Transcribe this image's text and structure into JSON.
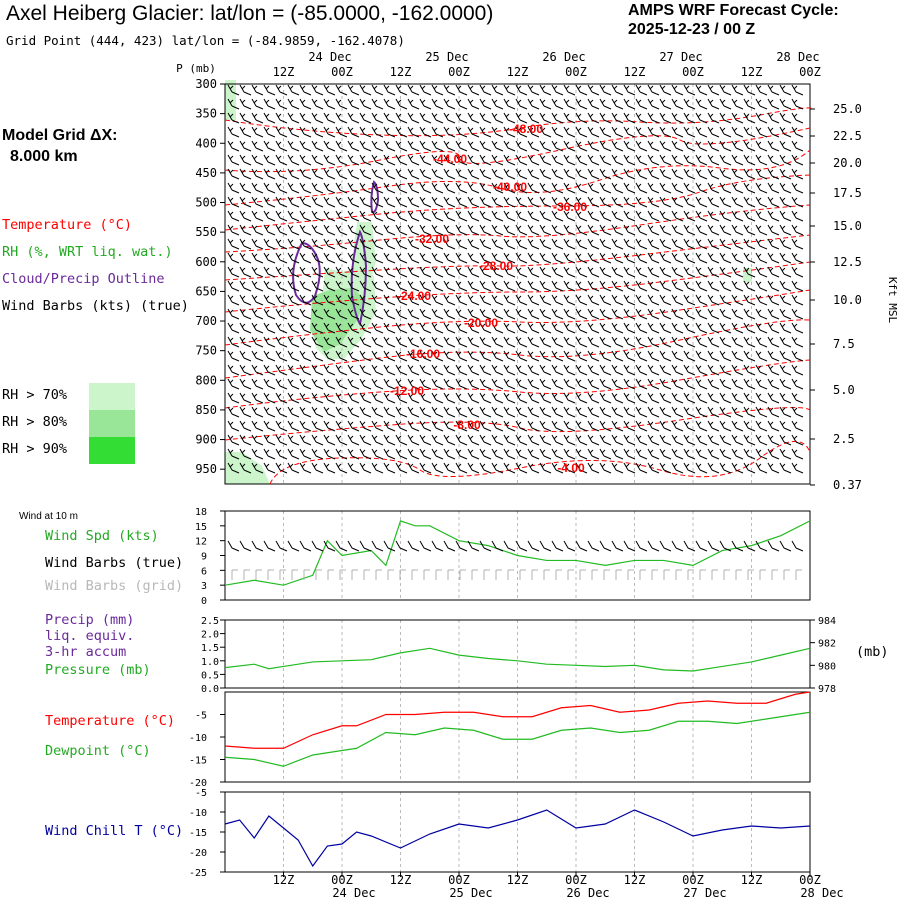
{
  "header": {
    "title": "Axel Heiberg Glacier:  lat/lon = (-85.0000, -162.0000)",
    "subtitle": "Grid Point (444, 423) lat/lon = (-84.9859, -162.4078)",
    "cycle_line1": "AMPS WRF Forecast Cycle:",
    "cycle_line2": "2025-12-23 / 00  Z",
    "grid_line1": "Model Grid ΔX:",
    "grid_line2": "8.000 km"
  },
  "time_axis": {
    "ticks": [
      "12Z",
      "00Z",
      "12Z",
      "00Z",
      "12Z",
      "00Z",
      "12Z",
      "00Z",
      "12Z",
      "00Z"
    ],
    "days": [
      "24 Dec",
      "25 Dec",
      "26 Dec",
      "27 Dec",
      "28 Dec"
    ]
  },
  "colors": {
    "temperature": "#ff0000",
    "rh": "#22bb22",
    "cloud": "#6a2a9a",
    "wind": "#000000",
    "grid_barb": "#b0b0b0",
    "wind_chill": "#0000a0",
    "rh70": "#ccf5cc",
    "rh80": "#99e699",
    "rh90": "#33dd33"
  },
  "legend_upper": {
    "temperature": "Temperature (°C)",
    "rh": "RH (%, WRT liq. wat.)",
    "cloud": "Cloud/Precip Outline",
    "wind": "Wind Barbs (kts) (true)",
    "rh70": "RH > 70%",
    "rh80": "RH > 80%",
    "rh90": "RH > 90%"
  },
  "legend_lower": {
    "wind10": "Wind at 10 m",
    "wspd": "Wind Spd (kts)",
    "wbarb_true": "Wind Barbs (true)",
    "wbarb_grid": "Wind Barbs (grid)",
    "precip1": "Precip (mm)",
    "precip2": "liq. equiv.",
    "precip3": "3-hr accum",
    "pressure": "Pressure (mb)",
    "temp": "Temperature (°C)",
    "dewp": "Dewpoint (°C)",
    "wchill": "Wind Chill T (°C)",
    "mb_unit": "(mb)"
  },
  "chart_data": [
    {
      "type": "contour",
      "panel": "upper_air",
      "y_label": "P (mb)",
      "y_ticks": [
        300,
        350,
        400,
        450,
        500,
        550,
        600,
        650,
        700,
        750,
        800,
        850,
        900,
        950
      ],
      "right_ticks": [
        "25.0",
        "22.5",
        "20.0",
        "17.5",
        "15.0",
        "12.5",
        "10.0",
        "7.5",
        "5.0",
        "2.5",
        "0.37"
      ],
      "right_label": "Kft MSL",
      "temperature_labels": [
        "-48.00",
        "-44.00",
        "-40.00",
        "-36.00",
        "-32.00",
        "-28.00",
        "-24.00",
        "-20.00",
        "-16.00",
        "-12.00",
        "-8.00",
        "-4.00"
      ]
    },
    {
      "type": "line",
      "panel": "wind_speed",
      "y_ticks": [
        0,
        3,
        6,
        9,
        12,
        15,
        18
      ],
      "ylim": [
        0,
        18
      ],
      "x_hours": [
        0,
        6,
        12,
        18,
        21,
        24,
        30,
        33,
        36,
        39,
        42,
        48,
        54,
        60,
        66,
        72,
        78,
        84,
        90,
        96,
        102,
        108,
        114,
        120
      ],
      "series": [
        {
          "values": [
            3,
            4,
            3,
            5,
            12,
            9,
            10,
            7,
            16,
            15,
            15,
            12,
            11,
            9,
            8,
            8,
            7,
            8,
            8,
            7,
            10,
            11,
            13,
            16
          ]
        }
      ]
    },
    {
      "type": "line",
      "panel": "precip_pressure",
      "y_ticks_left": [
        "0.0",
        "0.5",
        "1.0",
        "1.5",
        "2.0",
        "2.5"
      ],
      "y_ticks_right": [
        978,
        980,
        982,
        984
      ],
      "ylim_right": [
        978,
        984
      ],
      "x_hours": [
        0,
        6,
        9,
        12,
        18,
        24,
        30,
        36,
        42,
        48,
        54,
        60,
        66,
        72,
        78,
        84,
        90,
        96,
        102,
        108,
        114,
        120
      ],
      "series": [
        {
          "values": [
            979.8,
            980.1,
            979.7,
            979.9,
            980.3,
            980.4,
            980.5,
            981.1,
            981.5,
            980.9,
            980.6,
            980.4,
            980.1,
            980.0,
            979.9,
            980.0,
            979.6,
            979.5,
            979.9,
            980.3,
            980.9,
            981.5
          ]
        }
      ]
    },
    {
      "type": "line",
      "panel": "temperature_dewpoint",
      "y_ticks": [
        -20,
        -15,
        -10,
        -5
      ],
      "ylim": [
        -20,
        0
      ],
      "x_hours": [
        0,
        6,
        12,
        18,
        24,
        27,
        33,
        39,
        45,
        51,
        57,
        63,
        69,
        75,
        81,
        87,
        93,
        99,
        105,
        111,
        117,
        120
      ],
      "series": [
        {
          "values": [
            -12,
            -12.5,
            -12.5,
            -9.5,
            -7.5,
            -7.5,
            -5,
            -5,
            -4.5,
            -4.5,
            -5.5,
            -5.5,
            -3.5,
            -3,
            -4.5,
            -4,
            -2.5,
            -2,
            -2.5,
            -2.5,
            -0.5,
            0
          ]
        },
        {
          "values": [
            -14.5,
            -15,
            -16.5,
            -14,
            -13,
            -12.5,
            -9,
            -9.5,
            -8,
            -8.5,
            -10.5,
            -10.5,
            -8.5,
            -8,
            -9,
            -8.5,
            -6.5,
            -6.5,
            -7,
            -6,
            -5,
            -4.5
          ]
        }
      ]
    },
    {
      "type": "line",
      "panel": "wind_chill",
      "y_ticks": [
        -25,
        -20,
        -15,
        -10,
        -5
      ],
      "ylim": [
        -25,
        -5
      ],
      "x_hours": [
        0,
        3,
        6,
        9,
        12,
        15,
        18,
        21,
        24,
        27,
        30,
        36,
        42,
        48,
        54,
        60,
        66,
        72,
        78,
        84,
        90,
        96,
        102,
        108,
        114,
        120
      ],
      "series": [
        {
          "values": [
            -13,
            -12,
            -16.5,
            -11,
            -14,
            -17,
            -23.5,
            -18.5,
            -18,
            -15,
            -16,
            -19,
            -15.5,
            -13,
            -14,
            -12,
            -9.5,
            -14,
            -13,
            -9.5,
            -12.5,
            -16,
            -14.5,
            -13.5,
            -14,
            -13.5
          ]
        }
      ]
    }
  ]
}
